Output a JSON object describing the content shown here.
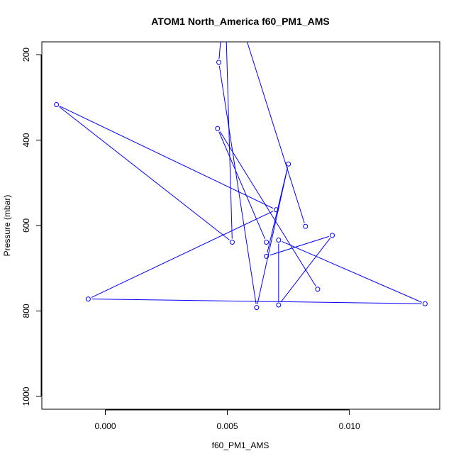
{
  "chart_data": {
    "type": "line",
    "title": "ATOM1 North_America f60_PM1_AMS",
    "xlabel": "f60_PM1_AMS",
    "ylabel": "Pressure (mbar)",
    "xlim": [
      -0.0026,
      0.0137
    ],
    "ylim": [
      1030,
      170
    ],
    "y_reversed": true,
    "x_ticks": [
      0.0,
      0.005,
      0.01
    ],
    "x_tick_labels": [
      "0.000",
      "0.005",
      "0.010"
    ],
    "y_ticks": [
      200,
      400,
      600,
      800,
      1000
    ],
    "y_tick_labels": [
      "200",
      "400",
      "600",
      "800",
      "1000"
    ],
    "grid": false,
    "legend": "none",
    "series": [
      {
        "color": "#0000ff",
        "marker": "open-circle",
        "points": [
          {
            "x": 0.00475,
            "y": 150,
            "marker": false
          },
          {
            "x": 0.00465,
            "y": 218,
            "marker": true
          },
          {
            "x": 0.0062,
            "y": 792,
            "marker": true
          },
          {
            "x": 0.0075,
            "y": 456,
            "marker": true
          },
          {
            "x": 0.0066,
            "y": 672,
            "marker": true
          },
          {
            "x": 0.0093,
            "y": 623,
            "marker": true
          },
          {
            "x": 0.0071,
            "y": 786,
            "marker": true
          },
          {
            "x": 0.0071,
            "y": 634,
            "marker": true
          },
          {
            "x": 0.0131,
            "y": 783,
            "marker": true
          },
          {
            "x": -0.0007,
            "y": 772,
            "marker": true
          },
          {
            "x": 0.007,
            "y": 563,
            "marker": true
          },
          {
            "x": -0.002,
            "y": 317,
            "marker": true
          },
          {
            "x": 0.0052,
            "y": 639,
            "marker": true
          },
          {
            "x": 0.00495,
            "y": 150,
            "marker": false
          }
        ]
      },
      {
        "color": "#0000ff",
        "marker": "open-circle",
        "points": [
          {
            "x": 0.0057,
            "y": 150,
            "marker": false
          },
          {
            "x": 0.0082,
            "y": 602,
            "marker": true
          }
        ]
      },
      {
        "color": "#0000ff",
        "marker": "open-circle",
        "points": [
          {
            "x": 0.0046,
            "y": 373,
            "marker": true
          },
          {
            "x": 0.0066,
            "y": 639,
            "marker": true
          }
        ]
      },
      {
        "color": "#0000ff",
        "marker": "open-circle",
        "points": [
          {
            "x": 0.0047,
            "y": 380,
            "marker": false
          },
          {
            "x": 0.0087,
            "y": 749,
            "marker": true
          }
        ]
      }
    ]
  }
}
